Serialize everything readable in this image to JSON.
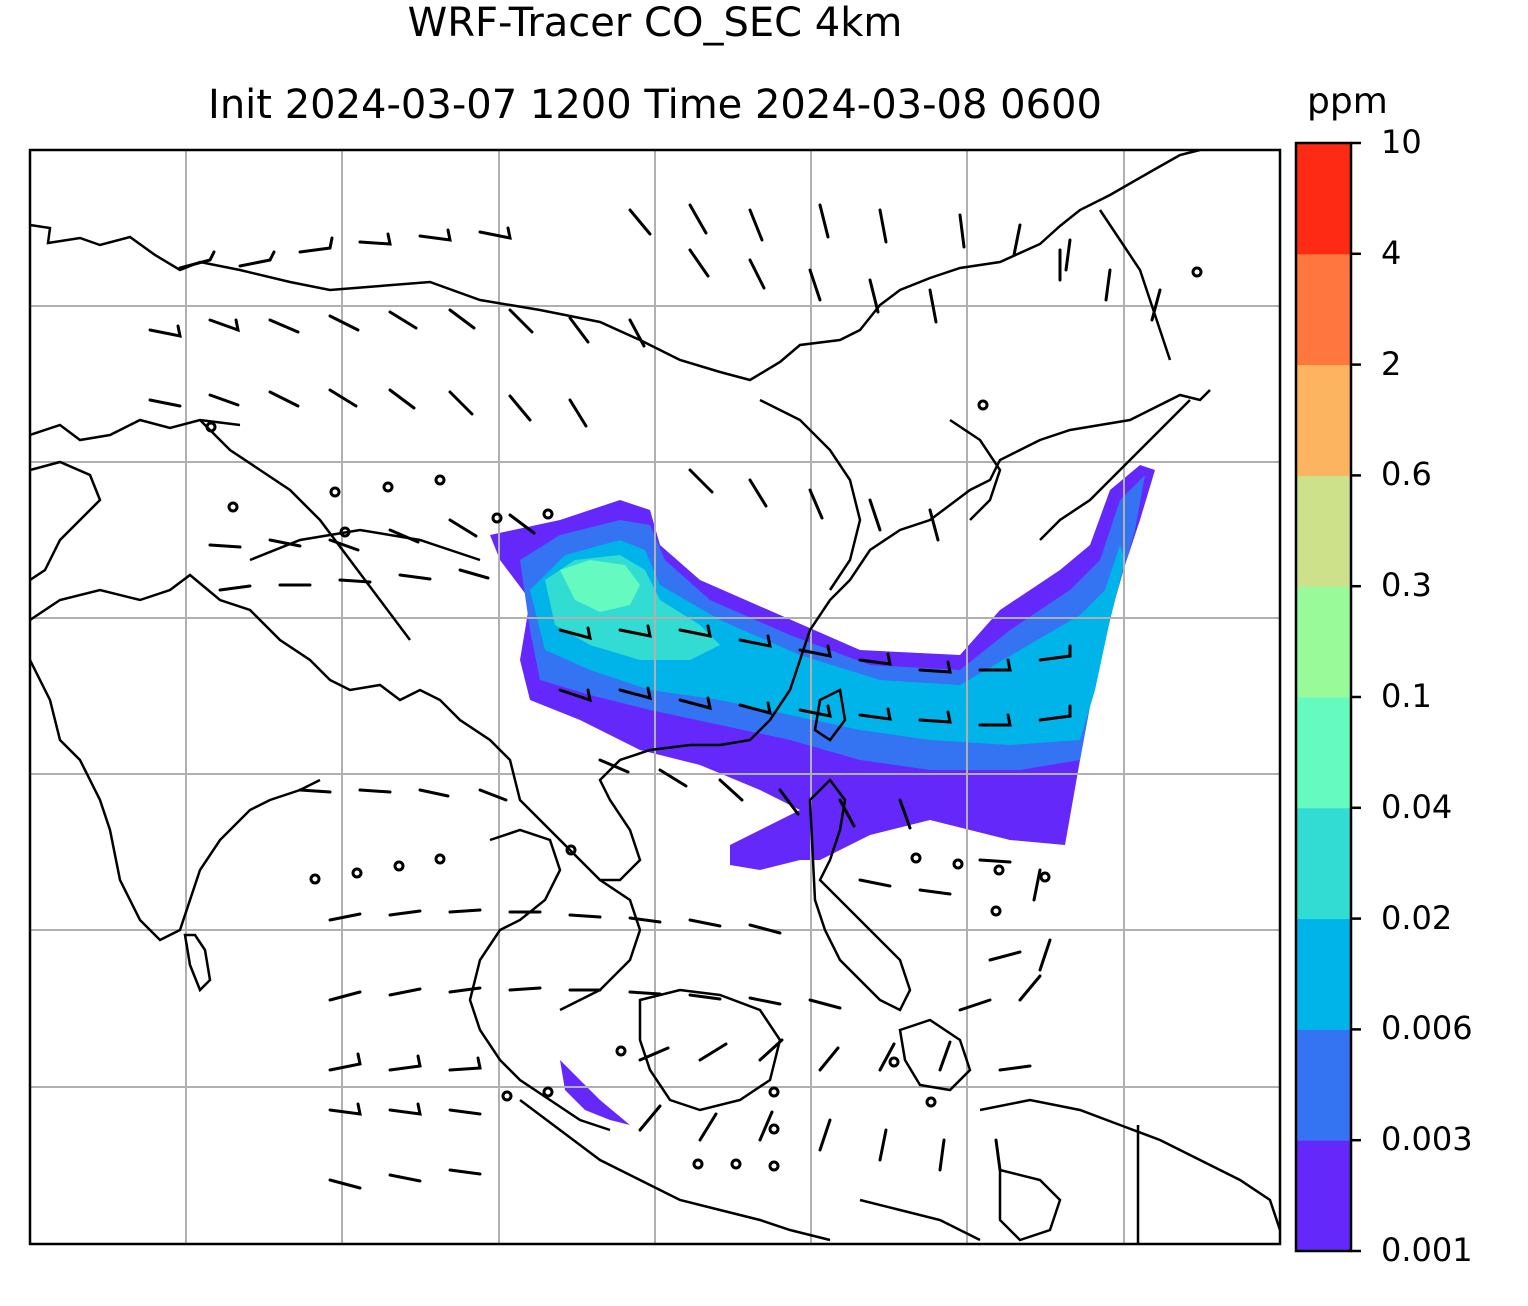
{
  "title_line1": "WRF-Tracer CO_SEC 4km",
  "title_line2": "Init 2024-03-07 1200 Time 2024-03-08 0600",
  "colorbar": {
    "unit": "ppm",
    "tick_labels": [
      "0.001",
      "0.003",
      "0.006",
      "0.02",
      "0.04",
      "0.1",
      "0.3",
      "0.6",
      "2",
      "4",
      "10"
    ],
    "colors": [
      "#6428fa",
      "#3473f1",
      "#00b4ea",
      "#32dcd3",
      "#64fac0",
      "#99fa99",
      "#cde08a",
      "#fdb461",
      "#ff763e",
      "#ff2a14"
    ]
  },
  "map_layers": {
    "coastlines": "black",
    "gridlines": "#b0b0b0",
    "wind_barbs": "black",
    "tracer_field": "CO_SEC"
  }
}
